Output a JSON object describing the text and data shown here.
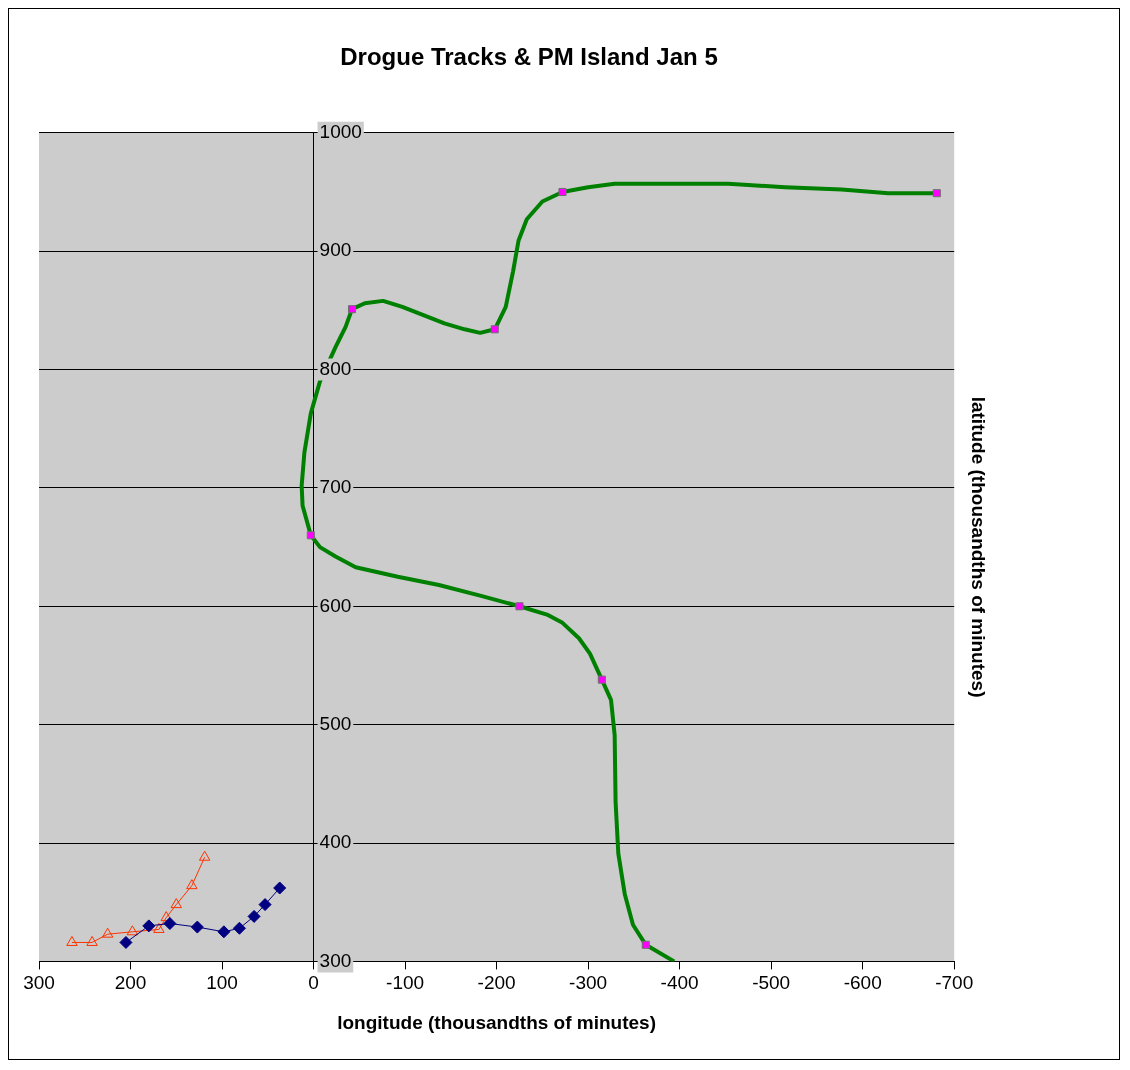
{
  "chart_data": {
    "type": "line",
    "title": "Drogue Tracks & PM Island Jan 5",
    "xlabel": "longitude (thousandths of minutes)",
    "ylabel": "latitude (thousandths of minutes)",
    "xlim": [
      300,
      -700
    ],
    "xticks": [
      300,
      200,
      100,
      0,
      -100,
      -200,
      -300,
      -400,
      -500,
      -600,
      -700
    ],
    "ylim": [
      300,
      1000
    ],
    "yticks": [
      300,
      400,
      500,
      600,
      700,
      800,
      900,
      1000
    ],
    "grid": "y",
    "legend": false,
    "series": [
      {
        "type": "line",
        "color": "#008000",
        "marker": "none",
        "x": [
          -394,
          -363,
          -349,
          -340,
          -333,
          -330,
          -329,
          -325,
          -315,
          -302,
          -290,
          -272,
          -255,
          -225,
          -182,
          -137,
          -92,
          -46,
          -24,
          -7,
          3,
          12,
          13,
          10,
          3,
          -7,
          -24,
          -35,
          -42,
          -56,
          -76,
          -97,
          -120,
          -143,
          -165,
          -182,
          -198,
          -210,
          -218,
          -224,
          -233,
          -250,
          -272,
          -300,
          -329,
          -430,
          -453,
          -515,
          -577,
          -628,
          -681
        ],
        "values": [
          300,
          314,
          331,
          357,
          391,
          435,
          491,
          521,
          538,
          560,
          573,
          586,
          593,
          600,
          609,
          618,
          625,
          633,
          642,
          650,
          660,
          685,
          702,
          730,
          763,
          790,
          819,
          836,
          851,
          856,
          858,
          853,
          846,
          839,
          834,
          831,
          834,
          853,
          883,
          909,
          927,
          942,
          950,
          954,
          957,
          957,
          957,
          954,
          952,
          949,
          949
        ]
      },
      {
        "type": "scatter",
        "color": "#ff00ff",
        "marker": "square",
        "x": [
          3,
          -225,
          -315,
          -363,
          -42,
          -198,
          -272,
          -681
        ],
        "values": [
          660,
          600,
          538,
          314,
          851,
          834,
          950,
          949
        ]
      },
      {
        "type": "line",
        "color": "#ff3300",
        "marker": "triangle",
        "x": [
          264,
          242,
          225,
          198,
          169,
          161,
          150,
          133,
          119
        ],
        "values": [
          316,
          316,
          323,
          325,
          327,
          337,
          348,
          364,
          388
        ]
      },
      {
        "type": "line",
        "color": "#000080",
        "marker": "diamond",
        "x": [
          205,
          180,
          157,
          127,
          98,
          81,
          65,
          53,
          37
        ],
        "values": [
          316,
          330,
          332,
          329,
          325,
          328,
          338,
          348,
          362
        ]
      }
    ]
  }
}
